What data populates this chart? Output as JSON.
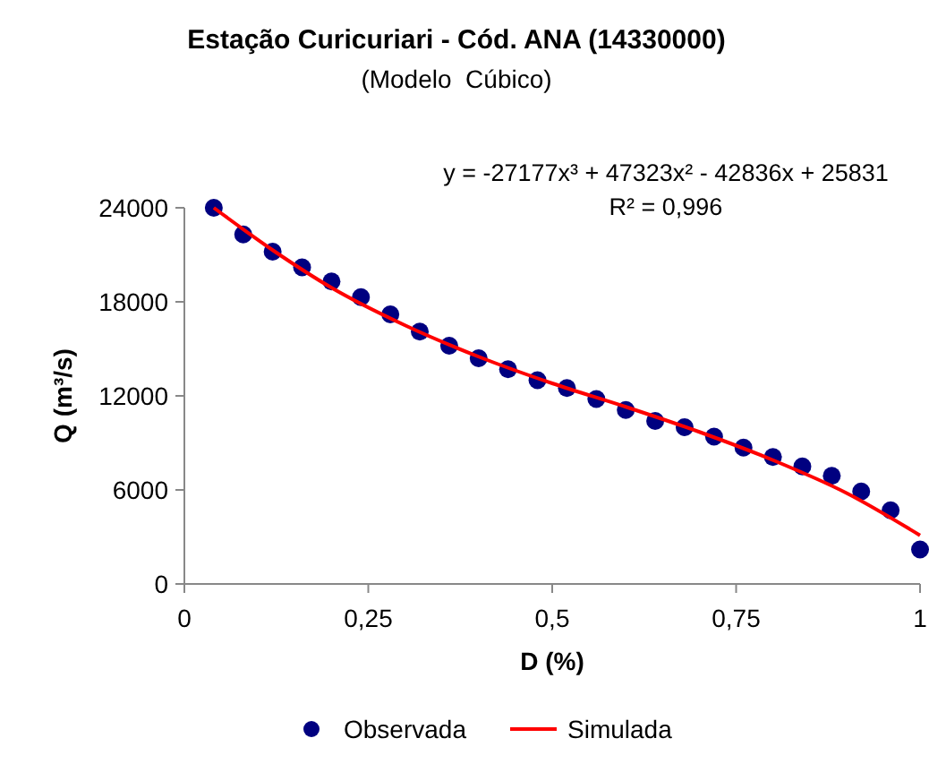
{
  "chart_data": {
    "type": "scatter",
    "title": "Estação Curicuriari - Cód. ANA (14330000)",
    "subtitle": "(Modelo  Cúbico)",
    "xlabel": "D (%)",
    "ylabel": "Q (m³/s)",
    "annotations": [
      "y = -27177x³ + 47323x² - 42836x + 25831",
      "R² = 0,996"
    ],
    "xlim": [
      0,
      1
    ],
    "xticks": [
      0,
      {
        "value": 0.25,
        "label": "0,25"
      },
      {
        "value": 0.5,
        "label": "0,5"
      },
      {
        "value": 0.75,
        "label": "0,75"
      },
      1
    ],
    "ylim": [
      0,
      24000
    ],
    "yticks": [
      0,
      6000,
      12000,
      18000,
      24000
    ],
    "grid": false,
    "legend": "bottom",
    "series": [
      {
        "name": "Observada",
        "color": "#000080",
        "marker": "circle",
        "x": [
          0.04,
          0.08,
          0.12,
          0.16,
          0.2,
          0.24,
          0.28,
          0.32,
          0.36,
          0.4,
          0.44,
          0.48,
          0.52,
          0.56,
          0.6,
          0.64,
          0.68,
          0.72,
          0.76,
          0.8,
          0.84,
          0.88,
          0.92,
          0.96,
          1.0
        ],
        "values": [
          24000,
          22300,
          21200,
          20200,
          19300,
          18300,
          17200,
          16100,
          15200,
          14400,
          13700,
          13000,
          12500,
          11800,
          11100,
          10400,
          10000,
          9400,
          8700,
          8100,
          7500,
          6900,
          5900,
          4700,
          2200
        ]
      },
      {
        "name": "Simulada",
        "type": "line",
        "color": "#ff0000",
        "marker": "none",
        "line_style": "solid",
        "x": [
          0.04,
          0.12,
          0.2,
          0.3,
          0.4,
          0.5,
          0.6,
          0.7,
          0.8,
          0.9,
          1.0
        ],
        "values": [
          24000,
          21300,
          18900,
          16500,
          14500,
          12800,
          11300,
          9700,
          7900,
          5800,
          3100
        ]
      }
    ]
  }
}
